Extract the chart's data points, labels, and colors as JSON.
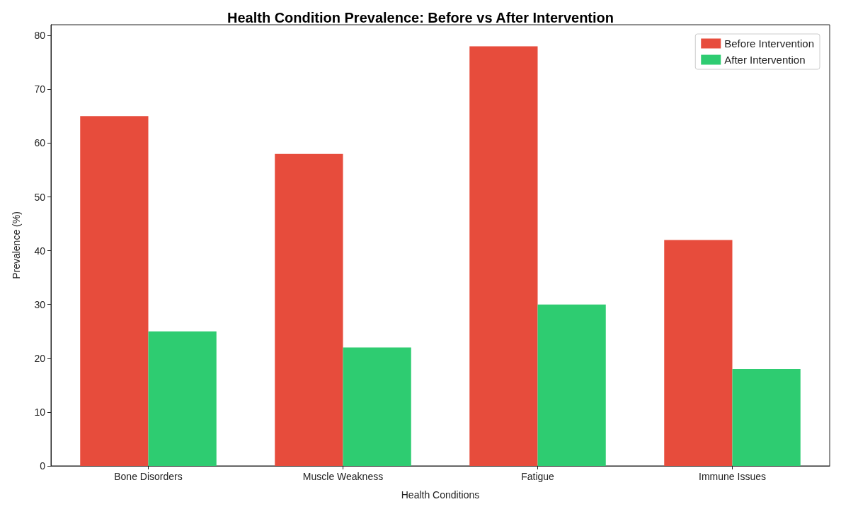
{
  "chart_data": {
    "type": "bar",
    "title": "Health Condition Prevalence: Before vs After Intervention",
    "xlabel": "Health Conditions",
    "ylabel": "Prevalence (%)",
    "categories": [
      "Bone Disorders",
      "Muscle Weakness",
      "Fatigue",
      "Immune Issues"
    ],
    "series": [
      {
        "name": "Before Intervention",
        "color": "#e74c3c",
        "values": [
          65,
          58,
          78,
          42
        ]
      },
      {
        "name": "After Intervention",
        "color": "#2ecc71",
        "values": [
          25,
          22,
          30,
          18
        ]
      }
    ],
    "ylim": [
      0,
      82
    ],
    "yticks": [
      0,
      10,
      20,
      30,
      40,
      50,
      60,
      70,
      80
    ],
    "grid": false,
    "legend": "top right"
  }
}
